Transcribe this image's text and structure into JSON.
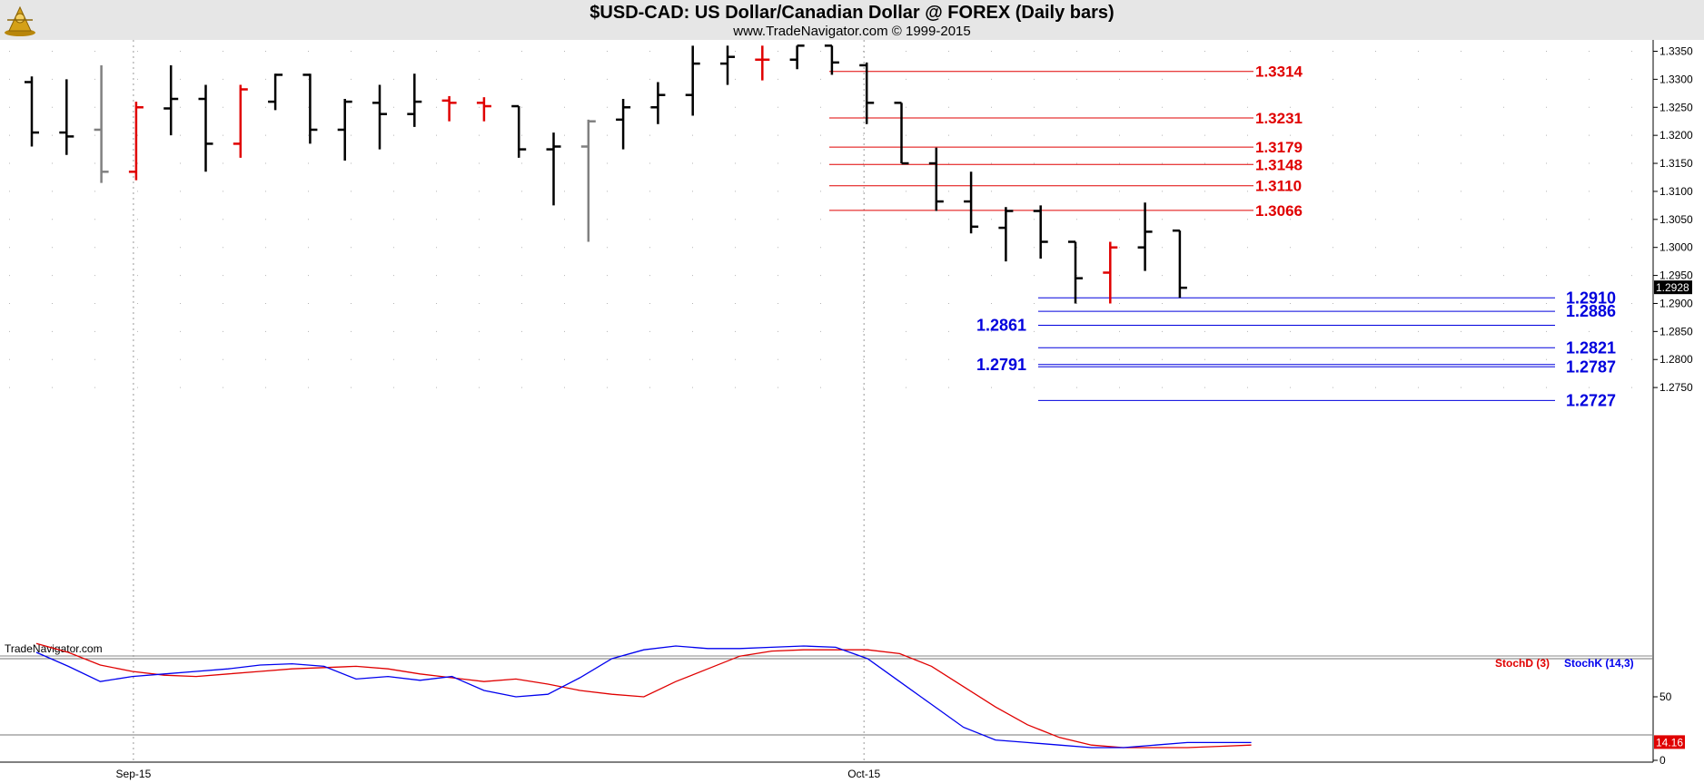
{
  "header": {
    "title": "$USD-CAD:  US Dollar/Canadian Dollar @ FOREX  (Daily bars)",
    "credit": "www.TradeNavigator.com © 1999-2015"
  },
  "watermark": "TradeNavigator.com",
  "colors": {
    "up": "#000000",
    "down": "#e00000",
    "gray": "#808080",
    "resistance": "#e00000",
    "support": "#0000dd",
    "stochD": "#e00000",
    "stochK": "#0000ee"
  },
  "chart_data": [
    {
      "type": "ohlc",
      "ylim": [
        1.27,
        1.336
      ],
      "y_ticks": [
        "1.2750",
        "1.2800",
        "1.2850",
        "1.2900",
        "1.2950",
        "1.3000",
        "1.3050",
        "1.3100",
        "1.3150",
        "1.3200",
        "1.3250",
        "1.3300",
        "1.3350"
      ],
      "x_tick_labels": [
        {
          "index": 3,
          "label": "Sep-15"
        },
        {
          "index": 24,
          "label": "Oct-15"
        }
      ],
      "last_price": "1.2928",
      "bars": [
        {
          "o": 1.3295,
          "h": 1.3305,
          "l": 1.318,
          "c": 1.3205,
          "col": "up"
        },
        {
          "o": 1.3205,
          "h": 1.33,
          "l": 1.3165,
          "c": 1.3198,
          "col": "up"
        },
        {
          "o": 1.321,
          "h": 1.3325,
          "l": 1.3115,
          "c": 1.3135,
          "col": "gray"
        },
        {
          "o": 1.3135,
          "h": 1.326,
          "l": 1.312,
          "c": 1.325,
          "col": "down"
        },
        {
          "o": 1.3248,
          "h": 1.3325,
          "l": 1.32,
          "c": 1.3265,
          "col": "up"
        },
        {
          "o": 1.3265,
          "h": 1.329,
          "l": 1.3135,
          "c": 1.3185,
          "col": "up"
        },
        {
          "o": 1.3185,
          "h": 1.329,
          "l": 1.316,
          "c": 1.3282,
          "col": "down"
        },
        {
          "o": 1.326,
          "h": 1.331,
          "l": 1.3245,
          "c": 1.3308,
          "col": "up"
        },
        {
          "o": 1.3308,
          "h": 1.331,
          "l": 1.3185,
          "c": 1.321,
          "col": "up"
        },
        {
          "o": 1.321,
          "h": 1.3265,
          "l": 1.3155,
          "c": 1.326,
          "col": "up"
        },
        {
          "o": 1.3258,
          "h": 1.329,
          "l": 1.3175,
          "c": 1.3238,
          "col": "up"
        },
        {
          "o": 1.3238,
          "h": 1.331,
          "l": 1.3215,
          "c": 1.326,
          "col": "up"
        },
        {
          "o": 1.3262,
          "h": 1.327,
          "l": 1.3225,
          "c": 1.3258,
          "col": "down"
        },
        {
          "o": 1.3258,
          "h": 1.3268,
          "l": 1.3225,
          "c": 1.3252,
          "col": "down"
        },
        {
          "o": 1.3252,
          "h": 1.3252,
          "l": 1.316,
          "c": 1.3175,
          "col": "up"
        },
        {
          "o": 1.3175,
          "h": 1.3205,
          "l": 1.3075,
          "c": 1.318,
          "col": "up"
        },
        {
          "o": 1.318,
          "h": 1.3228,
          "l": 1.301,
          "c": 1.3225,
          "col": "gray"
        },
        {
          "o": 1.3228,
          "h": 1.3265,
          "l": 1.3175,
          "c": 1.325,
          "col": "up"
        },
        {
          "o": 1.325,
          "h": 1.3295,
          "l": 1.322,
          "c": 1.3272,
          "col": "up"
        },
        {
          "o": 1.3272,
          "h": 1.336,
          "l": 1.3235,
          "c": 1.3328,
          "col": "up"
        },
        {
          "o": 1.3328,
          "h": 1.336,
          "l": 1.329,
          "c": 1.334,
          "col": "up"
        },
        {
          "o": 1.3335,
          "h": 1.336,
          "l": 1.3298,
          "c": 1.3335,
          "col": "down"
        },
        {
          "o": 1.3335,
          "h": 1.336,
          "l": 1.3318,
          "c": 1.336,
          "col": "up"
        },
        {
          "o": 1.336,
          "h": 1.336,
          "l": 1.3308,
          "c": 1.333,
          "col": "up"
        },
        {
          "o": 1.3325,
          "h": 1.333,
          "l": 1.322,
          "c": 1.3258,
          "col": "up"
        },
        {
          "o": 1.3258,
          "h": 1.3258,
          "l": 1.315,
          "c": 1.315,
          "col": "up"
        },
        {
          "o": 1.315,
          "h": 1.3178,
          "l": 1.3065,
          "c": 1.3082,
          "col": "up"
        },
        {
          "o": 1.3082,
          "h": 1.3135,
          "l": 1.3025,
          "c": 1.3037,
          "col": "up"
        },
        {
          "o": 1.3035,
          "h": 1.3072,
          "l": 1.2975,
          "c": 1.3065,
          "col": "up"
        },
        {
          "o": 1.3065,
          "h": 1.3075,
          "l": 1.298,
          "c": 1.301,
          "col": "up"
        },
        {
          "o": 1.301,
          "h": 1.301,
          "l": 1.29,
          "c": 1.2945,
          "col": "up"
        },
        {
          "o": 1.2955,
          "h": 1.301,
          "l": 1.29,
          "c": 1.3,
          "col": "down"
        },
        {
          "o": 1.3,
          "h": 1.308,
          "l": 1.2958,
          "c": 1.3028,
          "col": "up"
        },
        {
          "o": 1.303,
          "h": 1.303,
          "l": 1.291,
          "c": 1.2928,
          "col": "up"
        }
      ],
      "resistance_levels": [
        {
          "value": 1.3314,
          "label": "1.3314"
        },
        {
          "value": 1.3231,
          "label": "1.3231"
        },
        {
          "value": 1.3179,
          "label": "1.3179"
        },
        {
          "value": 1.3148,
          "label": "1.3148"
        },
        {
          "value": 1.311,
          "label": "1.3110"
        },
        {
          "value": 1.3066,
          "label": "1.3066"
        }
      ],
      "support_levels": [
        {
          "value": 1.291,
          "label": "1.2910",
          "side": "right"
        },
        {
          "value": 1.2886,
          "label": "1.2886",
          "side": "right"
        },
        {
          "value": 1.2861,
          "label": "1.2861",
          "side": "left"
        },
        {
          "value": 1.2821,
          "label": "1.2821",
          "side": "right"
        },
        {
          "value": 1.2791,
          "label": "1.2791",
          "side": "left"
        },
        {
          "value": 1.2787,
          "label": "1.2787",
          "side": "right"
        },
        {
          "value": 1.2727,
          "label": "1.2727",
          "side": "right"
        }
      ]
    },
    {
      "type": "line",
      "ylim": [
        0,
        100
      ],
      "y_ticks": [
        "0",
        "50"
      ],
      "reference_lines": [
        80,
        20
      ],
      "legend": "top-right",
      "last_value": "14.16",
      "series": [
        {
          "name": "StochD (3)",
          "color": "#e00000",
          "values": [
            92,
            85,
            75,
            70,
            67,
            66,
            68,
            70,
            72,
            73,
            74,
            72,
            68,
            65,
            62,
            64,
            60,
            55,
            52,
            50,
            62,
            72,
            82,
            86,
            87,
            87,
            87,
            84,
            74,
            58,
            42,
            28,
            18,
            12,
            10,
            10,
            10,
            11,
            12
          ]
        },
        {
          "name": "StochK (14,3)",
          "color": "#0000ee",
          "values": [
            85,
            74,
            62,
            66,
            68,
            70,
            72,
            75,
            76,
            74,
            64,
            66,
            63,
            66,
            55,
            50,
            52,
            65,
            80,
            87,
            90,
            88,
            88,
            89,
            90,
            89,
            80,
            62,
            44,
            26,
            16,
            14,
            12,
            10,
            10,
            12,
            14,
            14,
            14
          ]
        }
      ]
    }
  ]
}
